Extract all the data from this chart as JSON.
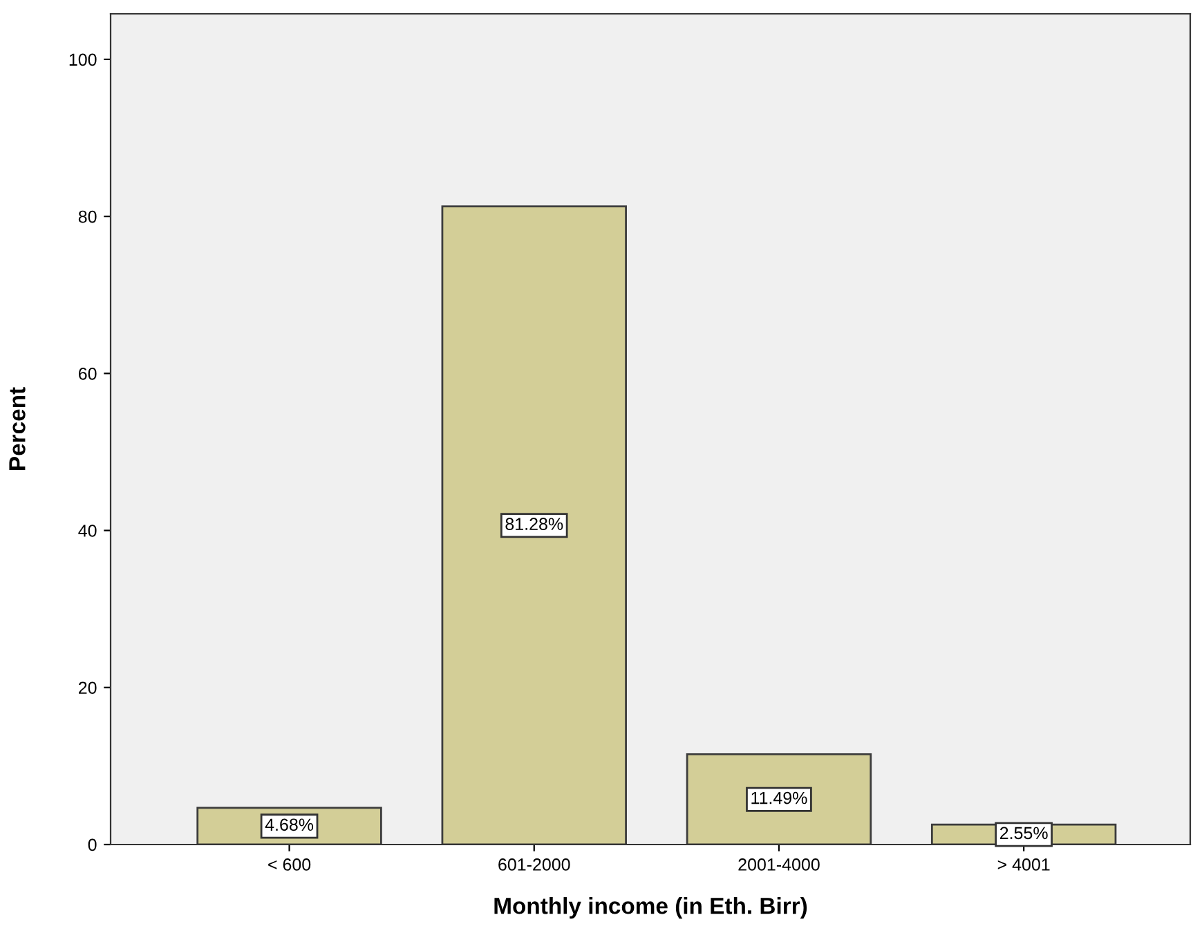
{
  "chart_data": {
    "type": "bar",
    "xlabel": "Monthly income (in Eth. Birr)",
    "ylabel": "Percent",
    "categories": [
      "< 600",
      "601-2000",
      "2001-4000",
      "> 4001"
    ],
    "values": [
      4.68,
      81.28,
      11.49,
      2.55
    ],
    "value_labels": [
      "4.68%",
      "81.28%",
      "11.49%",
      "2.55%"
    ],
    "color": "#d3ce97",
    "ylim": [
      0,
      105.8
    ],
    "yticks": [
      0,
      20,
      40,
      60,
      80,
      100
    ],
    "grid": false
  }
}
